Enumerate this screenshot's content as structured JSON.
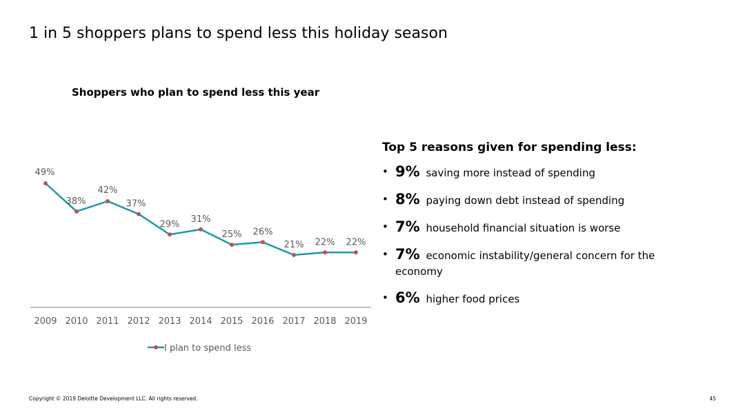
{
  "slide": {
    "title": "1 in 5 shoppers plans to spend less this holiday season",
    "footer": "Copyright © 2019 Deloitte Development LLC. All rights reserved.",
    "page_number": "45"
  },
  "chart_data": {
    "type": "line",
    "title": "Shoppers who plan to spend less this year",
    "categories": [
      "2009",
      "2010",
      "2011",
      "2012",
      "2013",
      "2014",
      "2015",
      "2016",
      "2017",
      "2018",
      "2019"
    ],
    "series": [
      {
        "name": "I plan to spend less",
        "values": [
          49,
          38,
          42,
          37,
          29,
          31,
          25,
          26,
          21,
          22,
          22
        ],
        "labels": [
          "49%",
          "38%",
          "42%",
          "37%",
          "29%",
          "31%",
          "25%",
          "26%",
          "21%",
          "22%",
          "22%"
        ]
      }
    ],
    "xlabel": "",
    "ylabel": "",
    "ylim": [
      0,
      60
    ],
    "grid": false,
    "legend": "bottom",
    "colors": {
      "line": "#1a97a8",
      "marker": "#c0504d",
      "axis": "#7f7f7f",
      "label_text": "#595959"
    }
  },
  "reasons": {
    "heading": "Top 5 reasons given for spending less:",
    "items": [
      {
        "pct": "9%",
        "text": "saving more instead of spending"
      },
      {
        "pct": "8%",
        "text": "paying down debt instead of spending"
      },
      {
        "pct": "7%",
        "text": "household financial situation is worse"
      },
      {
        "pct": "7%",
        "text": "economic instability/general concern for the economy"
      },
      {
        "pct": "6%",
        "text": "higher food prices"
      }
    ]
  }
}
